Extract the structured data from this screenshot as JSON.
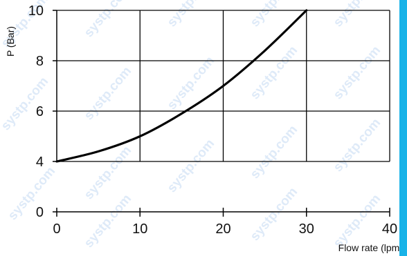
{
  "watermark": "systp.com",
  "colors": {
    "curve": "#000000",
    "grid": "#000000",
    "watermark": "#c2d9f2",
    "edge": "#19b3e8"
  },
  "chart_data": {
    "type": "line",
    "title": "",
    "xlabel": "Flow rate (lpm)",
    "ylabel": "P (Bar)",
    "xlim": [
      0,
      40
    ],
    "ylim": [
      0,
      10
    ],
    "x_ticks": [
      "0",
      "10",
      "20",
      "30",
      "40"
    ],
    "y_ticks": [
      "0",
      "4",
      "6",
      "8",
      "10"
    ],
    "y_axis_break": [
      0,
      4
    ],
    "grid": true,
    "series": [
      {
        "x": [
          0,
          5,
          10,
          15,
          20,
          25,
          30
        ],
        "y": [
          4.0,
          4.4,
          5.0,
          5.9,
          7.0,
          8.4,
          10.0
        ]
      }
    ]
  }
}
